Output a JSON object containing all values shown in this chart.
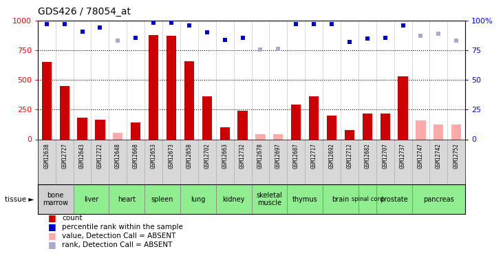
{
  "title": "GDS426 / 78054_at",
  "samples": [
    "GSM12638",
    "GSM12727",
    "GSM12643",
    "GSM12722",
    "GSM12648",
    "GSM12668",
    "GSM12653",
    "GSM12673",
    "GSM12658",
    "GSM12702",
    "GSM12663",
    "GSM12732",
    "GSM12678",
    "GSM12697",
    "GSM12687",
    "GSM12717",
    "GSM12692",
    "GSM12712",
    "GSM12682",
    "GSM12707",
    "GSM12737",
    "GSM12747",
    "GSM12742",
    "GSM12752"
  ],
  "bar_values": [
    650,
    450,
    185,
    165,
    55,
    140,
    880,
    870,
    660,
    360,
    100,
    240,
    45,
    45,
    295,
    360,
    200,
    80,
    220,
    215,
    530,
    160,
    125,
    125
  ],
  "bar_absent": [
    false,
    false,
    false,
    false,
    true,
    false,
    false,
    false,
    false,
    false,
    false,
    false,
    true,
    true,
    false,
    false,
    false,
    false,
    false,
    false,
    false,
    true,
    true,
    true
  ],
  "rank_values": [
    97,
    97,
    91,
    94,
    83,
    85.5,
    98,
    98,
    96,
    90,
    84,
    85.5,
    75.5,
    76,
    97,
    97,
    97,
    82,
    85,
    85.5,
    96,
    87.5,
    89,
    83
  ],
  "rank_absent": [
    false,
    false,
    false,
    false,
    true,
    false,
    false,
    false,
    false,
    false,
    false,
    false,
    true,
    true,
    false,
    false,
    false,
    false,
    false,
    false,
    false,
    true,
    true,
    true
  ],
  "ylim_left": [
    0,
    1000
  ],
  "ylim_right": [
    0,
    100
  ],
  "yticks_left": [
    0,
    250,
    500,
    750,
    1000
  ],
  "yticks_right": [
    0,
    25,
    50,
    75,
    100
  ],
  "bar_color_present": "#cc0000",
  "bar_color_absent": "#ffaaaa",
  "rank_color_present": "#0000cc",
  "rank_color_absent": "#aaaacc",
  "tissue_cols": [
    {
      "indices": [
        0,
        1
      ],
      "name": "bone\nmarrow",
      "color": "#d0d0d0"
    },
    {
      "indices": [
        2,
        3
      ],
      "name": "liver",
      "color": "#90ee90"
    },
    {
      "indices": [
        4,
        5
      ],
      "name": "heart",
      "color": "#90ee90"
    },
    {
      "indices": [
        6,
        7
      ],
      "name": "spleen",
      "color": "#90ee90"
    },
    {
      "indices": [
        8,
        9
      ],
      "name": "lung",
      "color": "#90ee90"
    },
    {
      "indices": [
        10,
        11
      ],
      "name": "kidney",
      "color": "#90ee90"
    },
    {
      "indices": [
        12,
        13
      ],
      "name": "skeletal\nmuscle",
      "color": "#90ee90"
    },
    {
      "indices": [
        14,
        15
      ],
      "name": "thymus",
      "color": "#90ee90"
    },
    {
      "indices": [
        16,
        17
      ],
      "name": "brain",
      "color": "#90ee90"
    },
    {
      "indices": [
        18,
        18
      ],
      "name": "spinal cord",
      "color": "#90ee90"
    },
    {
      "indices": [
        19,
        20
      ],
      "name": "prostate",
      "color": "#90ee90"
    },
    {
      "indices": [
        21,
        23
      ],
      "name": "pancreas",
      "color": "#90ee90"
    }
  ]
}
